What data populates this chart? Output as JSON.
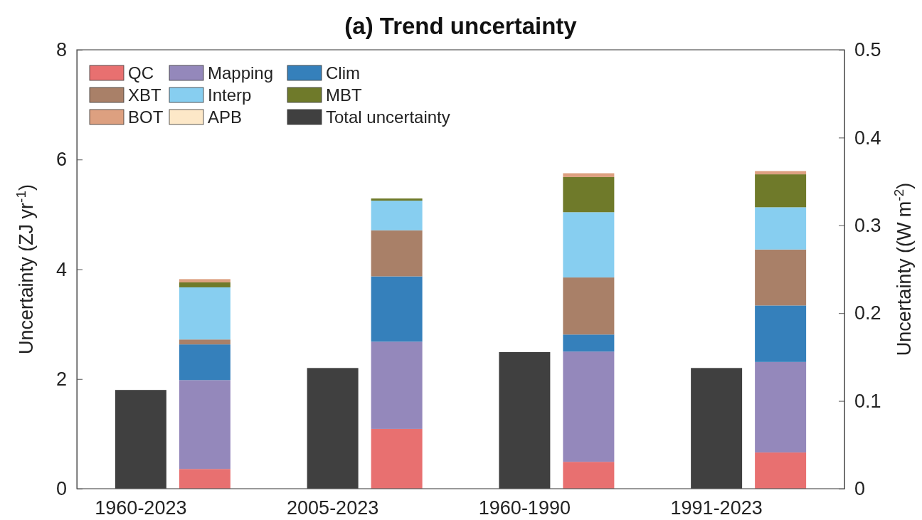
{
  "chart_data": {
    "type": "bar",
    "title": "(a) Trend uncertainty",
    "ylabel": "Uncertainty (ZJ yr$^{-1}$)",
    "y2label": "Uncertainty ((W m$^{-2}$)",
    "categories": [
      "1960-2023",
      null,
      "2005-2023",
      null,
      "1960-1990",
      null,
      "1991-2023",
      null
    ],
    "stacked": true,
    "legend": "top left",
    "ylim": [
      0,
      8
    ],
    "yticks": [
      0,
      2,
      4,
      6,
      8
    ],
    "y2lim": [
      0,
      0.5
    ],
    "y2ticks": [
      0,
      0.1,
      0.2,
      0.3,
      0.4,
      0.5
    ],
    "series": [
      {
        "name": "QC",
        "color": "#e87070",
        "values": [
          null,
          0.36,
          null,
          1.09,
          null,
          0.49,
          null,
          0.66
        ]
      },
      {
        "name": "Mapping",
        "color": "#9488bb",
        "values": [
          null,
          1.62,
          null,
          1.59,
          null,
          2.01,
          null,
          1.65
        ]
      },
      {
        "name": "Clim",
        "color": "#3580bb",
        "values": [
          null,
          0.65,
          null,
          1.19,
          null,
          0.31,
          null,
          1.03
        ]
      },
      {
        "name": "XBT",
        "color": "#a98068",
        "values": [
          null,
          0.09,
          null,
          0.84,
          null,
          1.04,
          null,
          1.02
        ]
      },
      {
        "name": "Interp",
        "color": "#87cef0",
        "values": [
          null,
          0.95,
          null,
          0.54,
          null,
          1.19,
          null,
          0.77
        ]
      },
      {
        "name": "MBT",
        "color": "#6f7a2a",
        "values": [
          null,
          0.09,
          null,
          0.04,
          null,
          0.64,
          null,
          0.6
        ]
      },
      {
        "name": "BOT",
        "color": "#dda080",
        "values": [
          null,
          0.06,
          null,
          0,
          null,
          0.07,
          null,
          0.06
        ]
      },
      {
        "name": "APB",
        "color": "#fde8c8",
        "values": [
          null,
          0,
          null,
          0,
          null,
          0,
          null,
          0
        ]
      },
      {
        "name": "Total uncertainty",
        "color": "#404040",
        "values": [
          1.8,
          null,
          2.2,
          null,
          2.49,
          null,
          2.2,
          null
        ]
      }
    ]
  }
}
